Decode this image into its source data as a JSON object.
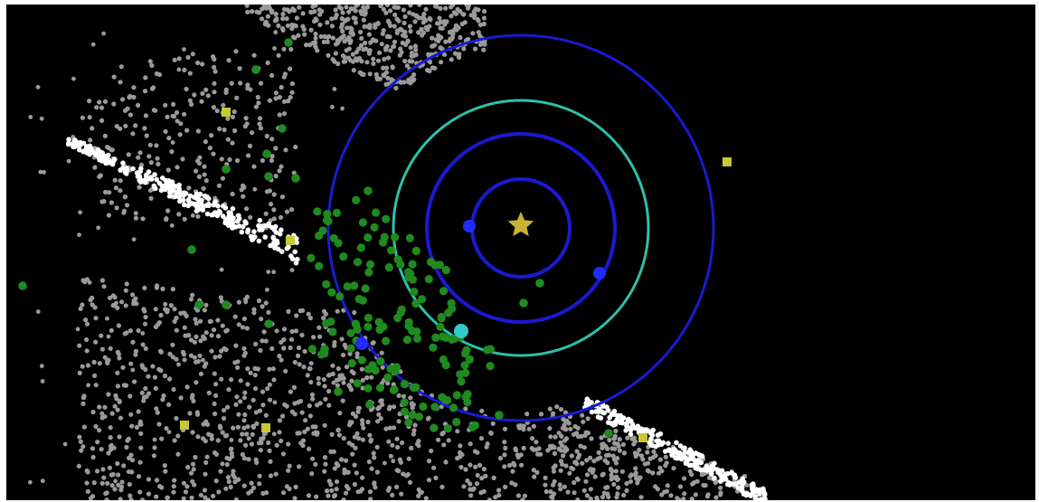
{
  "figure": {
    "background": "#000000",
    "border_color": "#ffffff",
    "sun": {
      "symbol": "star",
      "color": "#c9b233"
    },
    "orbits": [
      {
        "planet": "mercury",
        "color": "#1a1ad0"
      },
      {
        "planet": "venus",
        "color": "#1a1ad0"
      },
      {
        "planet": "earth",
        "color": "#2fbfa8"
      },
      {
        "planet": "mars",
        "color": "#1a1ad0"
      }
    ],
    "object_classes": [
      {
        "name": "planet",
        "color": "#1f2cff"
      },
      {
        "name": "earth",
        "color": "#33c9c9"
      },
      {
        "name": "near-earth-asteroid",
        "color": "#1f8a1f"
      },
      {
        "name": "trojan-asteroid",
        "color": "#9a9a9a"
      },
      {
        "name": "hilda-asteroid",
        "color": "#ffffff"
      },
      {
        "name": "comet",
        "color": "#c8c832"
      }
    ]
  }
}
